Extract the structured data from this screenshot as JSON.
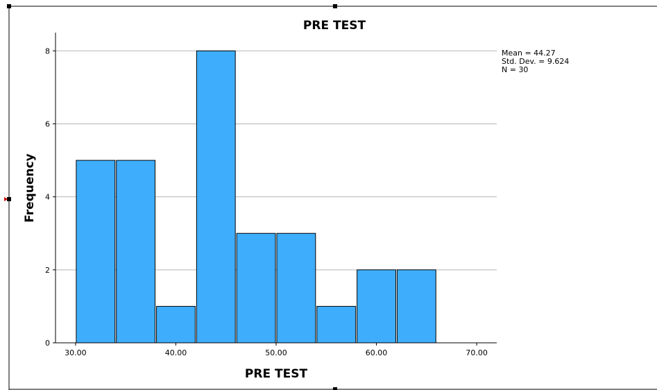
{
  "chart_data": {
    "type": "bar",
    "title": "PRE TEST",
    "xlabel": "PRE TEST",
    "ylabel": "Frequency",
    "bins": [
      {
        "x0": 30,
        "x1": 34,
        "count": 5
      },
      {
        "x0": 34,
        "x1": 38,
        "count": 5
      },
      {
        "x0": 38,
        "x1": 42,
        "count": 1
      },
      {
        "x0": 42,
        "x1": 46,
        "count": 8
      },
      {
        "x0": 46,
        "x1": 50,
        "count": 3
      },
      {
        "x0": 50,
        "x1": 54,
        "count": 3
      },
      {
        "x0": 54,
        "x1": 58,
        "count": 1
      },
      {
        "x0": 58,
        "x1": 62,
        "count": 2
      },
      {
        "x0": 62,
        "x1": 66,
        "count": 2
      }
    ],
    "xlim": [
      28,
      72
    ],
    "ylim": [
      0,
      8.5
    ],
    "x_ticks": [
      30,
      40,
      50,
      60,
      70
    ],
    "x_tick_labels": [
      "30.00",
      "40.00",
      "50.00",
      "60.00",
      "70.00"
    ],
    "y_ticks": [
      0,
      2,
      4,
      6,
      8
    ],
    "y_tick_labels": [
      "0",
      "2",
      "4",
      "6",
      "8"
    ],
    "grid": "horizontal",
    "bar_color": "#3eaefc",
    "stats": {
      "mean": "Mean = 44.27",
      "std_dev": "Std. Dev. = 9.624",
      "n": "N = 30"
    }
  }
}
